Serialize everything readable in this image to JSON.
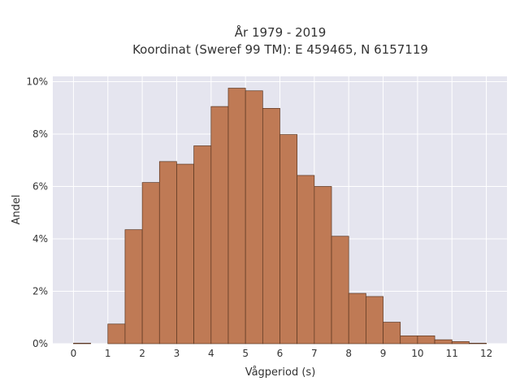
{
  "chart_data": {
    "type": "bar",
    "title": "År 1979 - 2019",
    "subtitle": "Koordinat (Sweref 99 TM): E 459465, N 6157119",
    "xlabel": "Vågperiod (s)",
    "ylabel": "Andel",
    "x_ticks": [
      "0",
      "1",
      "2",
      "3",
      "4",
      "5",
      "6",
      "7",
      "8",
      "9",
      "10",
      "11",
      "12"
    ],
    "y_ticks": [
      "0%",
      "2%",
      "4%",
      "6%",
      "8%",
      "10%"
    ],
    "xlim": [
      -0.6,
      12.6
    ],
    "ylim": [
      0,
      10.2
    ],
    "bin_width": 0.5,
    "bin_starts": [
      0,
      0.5,
      1,
      1.5,
      2,
      2.5,
      3,
      3.5,
      4,
      4.5,
      5,
      5.5,
      6,
      6.5,
      7,
      7.5,
      8,
      8.5,
      9,
      9.5,
      10,
      10.5,
      11,
      11.5
    ],
    "values": [
      0.02,
      0,
      0.75,
      4.35,
      6.15,
      6.95,
      6.85,
      7.55,
      9.05,
      9.75,
      9.65,
      8.98,
      7.98,
      6.42,
      6.0,
      4.1,
      1.92,
      1.8,
      0.82,
      0.3,
      0.3,
      0.15,
      0.08,
      0.02
    ],
    "grid": true,
    "colors": {
      "bar": "#bf7a55",
      "edge": "#5a3621",
      "plot_bg": "#e5e5ef",
      "grid": "#ffffff"
    }
  }
}
